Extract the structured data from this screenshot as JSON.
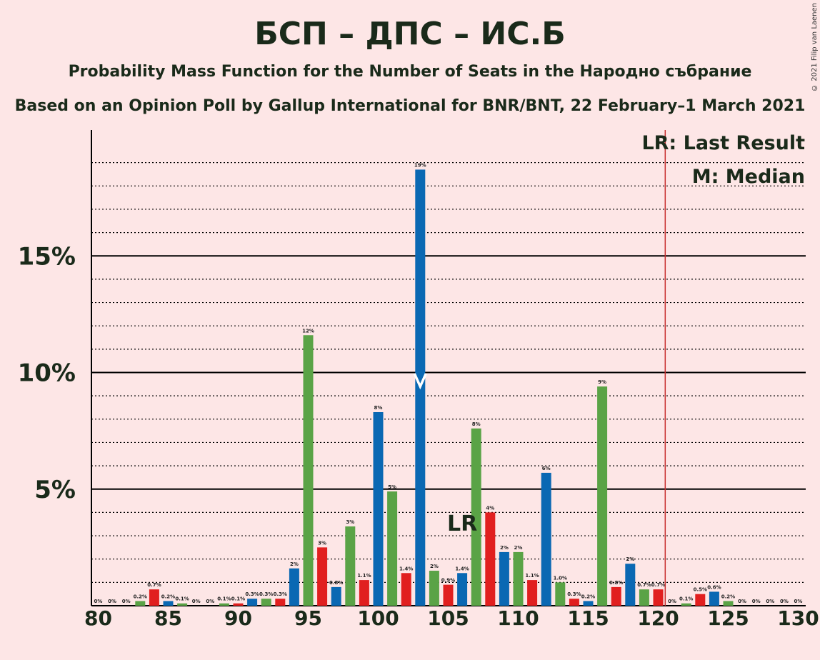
{
  "title": "БСП – ДПС – ИС.Б",
  "subtitle": "Probability Mass Function for the Number of Seats in the Народно събрание",
  "subtitle2": "Based on an Opinion Poll by Gallup International for BNR/BNT, 22 February–1 March 2021",
  "copyright": "© 2021 Filip van Laenen",
  "legend": {
    "last_result": "LR: Last Result",
    "median": "M: Median"
  },
  "colors": {
    "green": "#5aa346",
    "red": "#e11f1f",
    "blue": "#0a68b3",
    "majority_line": "#c83030",
    "background": "#fde6e6"
  },
  "chart_data": {
    "type": "bar",
    "x": [
      80,
      81,
      82,
      83,
      84,
      85,
      86,
      87,
      88,
      89,
      90,
      91,
      92,
      93,
      94,
      95,
      96,
      97,
      98,
      99,
      100,
      101,
      102,
      103,
      104,
      105,
      106,
      107,
      108,
      109,
      110,
      111,
      112,
      113,
      114,
      115,
      116,
      117,
      118,
      119,
      120,
      121,
      122,
      123,
      124,
      125,
      126,
      127,
      128,
      129,
      130
    ],
    "values": [
      0,
      0,
      0,
      0.2,
      0.7,
      0.2,
      0.1,
      0,
      0,
      0.1,
      0.1,
      0.3,
      0.3,
      0.3,
      1.6,
      11.6,
      2.5,
      0.8,
      3.4,
      1.1,
      8.3,
      4.9,
      1.4,
      18.7,
      1.5,
      0.9,
      1.4,
      7.6,
      4.0,
      2.3,
      2.3,
      1.1,
      5.7,
      1.0,
      0.3,
      0.2,
      9.4,
      0.8,
      1.8,
      0.7,
      0.7,
      0,
      0.1,
      0.5,
      0.6,
      0.2,
      0,
      0,
      0,
      0,
      0
    ],
    "labels": [
      "0%",
      "0%",
      "0%",
      "0.2%",
      "0.7%",
      "0.2%",
      "0.1%",
      "0%",
      "0%",
      "0.1%",
      "0.1%",
      "0.3%",
      "0.3%",
      "0.3%",
      "2%",
      "12%",
      "3%",
      "0.8%",
      "3%",
      "1.1%",
      "8%",
      "5%",
      "1.4%",
      "19%",
      "2%",
      "0.9%",
      "1.4%",
      "8%",
      "4%",
      "2%",
      "2%",
      "1.1%",
      "6%",
      "1.0%",
      "0.3%",
      "0.2%",
      "9%",
      "0.8%",
      "2%",
      "0.7%",
      "0.7%",
      "0%",
      "0.1%",
      "0.5%",
      "0.6%",
      "0.2%",
      "0%",
      "0%",
      "0%",
      "0%",
      "0%"
    ],
    "bar_colors": [
      "green",
      "red",
      "blue",
      "green",
      "red",
      "blue",
      "green",
      "red",
      "blue",
      "green",
      "red",
      "blue",
      "green",
      "red",
      "blue",
      "green",
      "red",
      "blue",
      "green",
      "red",
      "blue",
      "green",
      "red",
      "blue",
      "green",
      "red",
      "blue",
      "green",
      "red",
      "blue",
      "green",
      "red",
      "blue",
      "green",
      "red",
      "blue",
      "green",
      "red",
      "blue",
      "green",
      "red",
      "blue",
      "green",
      "red",
      "blue",
      "green",
      "red",
      "blue",
      "green",
      "red",
      "blue"
    ],
    "x_ticks": [
      80,
      85,
      90,
      95,
      100,
      105,
      110,
      115,
      120,
      125,
      130
    ],
    "y_ticks": [
      "5%",
      "10%",
      "15%"
    ],
    "y_tick_values": [
      5,
      10,
      15
    ],
    "ylim": [
      0,
      20
    ],
    "last_result_seat": 106,
    "last_result_label": "LR",
    "median_seat": 103,
    "majority_line_seat": 120.5
  }
}
